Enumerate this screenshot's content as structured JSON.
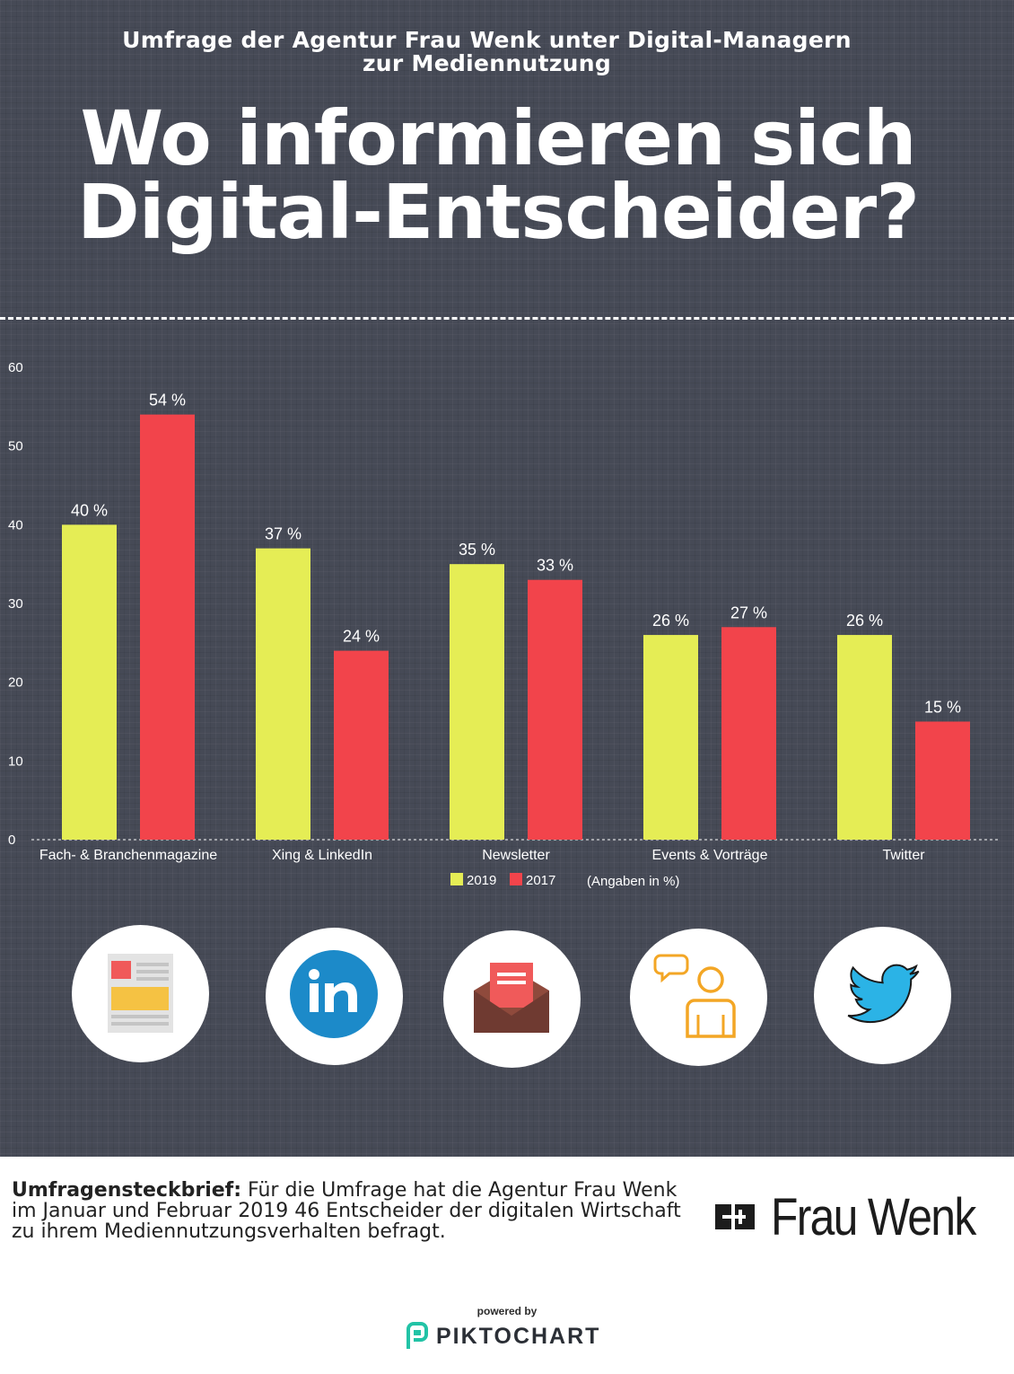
{
  "header": {
    "subtitle_line1": "Umfrage der Agentur Frau Wenk unter Digital-Managern",
    "subtitle_line2": "zur Mediennutzung",
    "title_line1": "Wo informieren sich",
    "title_line2": "Digital-Entscheider?"
  },
  "colors": {
    "background": "#464a56",
    "series_2019": "#e5ed55",
    "series_2017": "#f2444b"
  },
  "chart_data": {
    "type": "bar",
    "categories": [
      "Fach- & Branchenmagazine",
      "Xing & LinkedIn",
      "Newsletter",
      "Events & Vorträge",
      "Twitter"
    ],
    "series": [
      {
        "name": "2019",
        "values": [
          40,
          37,
          35,
          26,
          26
        ],
        "labels": [
          "40 %",
          "37 %",
          "35 %",
          "26 %",
          "26 %"
        ]
      },
      {
        "name": "2017",
        "values": [
          54,
          24,
          33,
          27,
          15
        ],
        "labels": [
          "54 %",
          "24 %",
          "33 %",
          "27 %",
          "15 %"
        ]
      }
    ],
    "ylim": [
      0,
      60
    ],
    "yticks": [
      0,
      10,
      20,
      30,
      40,
      50,
      60
    ],
    "legend_note": "(Angaben in %)",
    "legend_position": "bottom-center",
    "grid": false
  },
  "icons": [
    {
      "name": "magazine-icon"
    },
    {
      "name": "linkedin-icon"
    },
    {
      "name": "envelope-icon"
    },
    {
      "name": "speaker-icon"
    },
    {
      "name": "twitter-bird-icon"
    }
  ],
  "footer": {
    "label": "Umfragensteckbrief:",
    "text": " Für die Umfrage hat die Agentur Frau Wenk im Januar und Februar 2019 46 Entscheider der digitalen Wirtschaft zu ihrem Mediennutzungsverhalten befragt.",
    "brand": "Frau Wenk",
    "powered_by": "powered by",
    "piktochart": "PIKTOCHART"
  }
}
